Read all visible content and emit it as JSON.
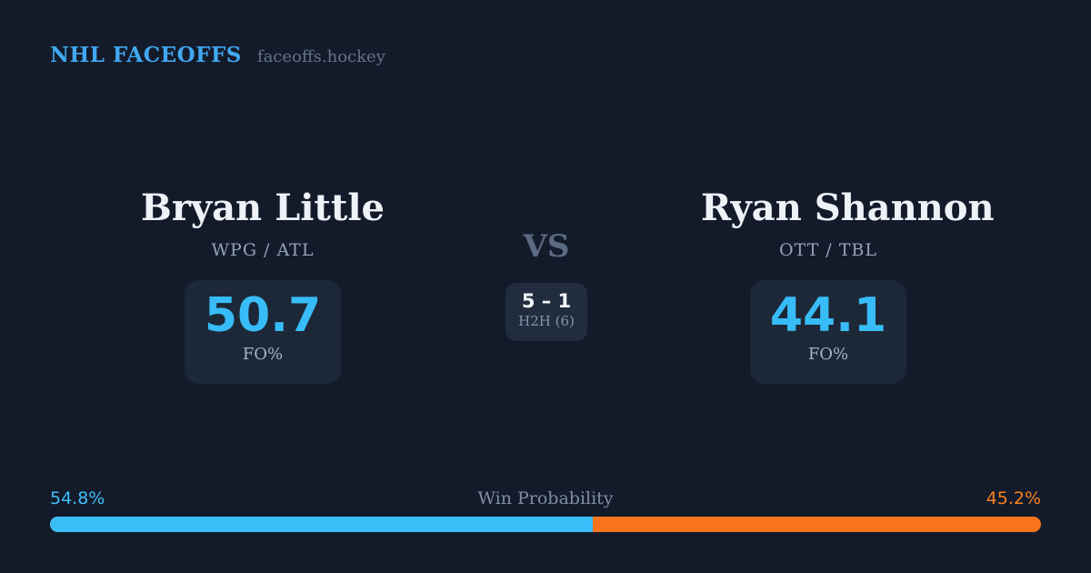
{
  "brand": {
    "title": "NHL FACEOFFS",
    "domain": "faceoffs.hockey"
  },
  "players": {
    "left": {
      "name": "Bryan Little",
      "teams": "WPG / ATL",
      "stat_value": "50.7",
      "stat_label": "FO%"
    },
    "right": {
      "name": "Ryan Shannon",
      "teams": "OTT / TBL",
      "stat_value": "44.1",
      "stat_label": "FO%"
    }
  },
  "center": {
    "vs_label": "VS",
    "h2h_score": "5 – 1",
    "h2h_label": "H2H (6)"
  },
  "win_probability": {
    "label": "Win Probability",
    "left_pct_text": "54.8%",
    "right_pct_text": "45.2%",
    "left_value": 54.8,
    "right_value": 45.2
  },
  "colors": {
    "background": "#131b2b",
    "panel": "#1c2837",
    "accent_blue": "#3abef7",
    "accent_orange": "#f8741c",
    "brand_blue": "#41a7f0"
  }
}
